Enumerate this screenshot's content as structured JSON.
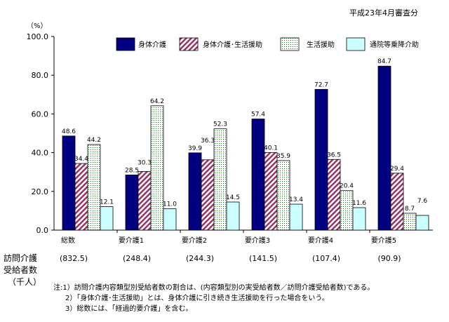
{
  "chart_data": {
    "type": "bar",
    "title": "",
    "subtitle": "平成23年4月審査分",
    "ylabel": "（%）",
    "xlabel": "",
    "ylim": [
      0,
      100
    ],
    "yticks": [
      "0.0",
      "20.0",
      "40.0",
      "60.0",
      "80.0",
      "100.0"
    ],
    "ytick_values": [
      0,
      20,
      40,
      60,
      80,
      100
    ],
    "grid": false,
    "legend_position": "top-right",
    "categories": [
      "総数",
      "要介護1",
      "要介護2",
      "要介護3",
      "要介護4",
      "要介護5"
    ],
    "series": [
      {
        "name": "身体介護",
        "color": "#000080",
        "pattern": "solid",
        "values": [
          48.6,
          28.5,
          39.9,
          57.4,
          72.7,
          84.7
        ]
      },
      {
        "name": "身体介護･生活援助",
        "color": "#993366",
        "pattern": "diagonal",
        "values": [
          34.4,
          30.3,
          36.3,
          40.1,
          36.5,
          29.4
        ]
      },
      {
        "name": "生活援助",
        "color": "#008000",
        "pattern": "dots",
        "values": [
          44.2,
          64.2,
          52.3,
          35.9,
          20.4,
          8.7
        ]
      },
      {
        "name": "通院等乗降介助",
        "color": "#ccffff",
        "pattern": "solid",
        "values": [
          12.1,
          11.0,
          14.5,
          13.4,
          11.6,
          7.6
        ]
      }
    ],
    "recipients_label": [
      "訪問介護",
      "受給者数",
      "（千人）"
    ],
    "recipients": [
      "(832.5)",
      "(248.4)",
      "(244.3)",
      "(141.5)",
      "(107.4)",
      "(90.9)"
    ],
    "notes": [
      "注:1）訪問介護内容類型別受給者数の割合は、(内容類型別の実受給者数／訪問介護受給者数)である。",
      "2）「身体介護･生活援助」とは、身体介護に引き続き生活援助を行った場合をいう。",
      "3）総数には、「経過的要介護」を含む。"
    ]
  }
}
